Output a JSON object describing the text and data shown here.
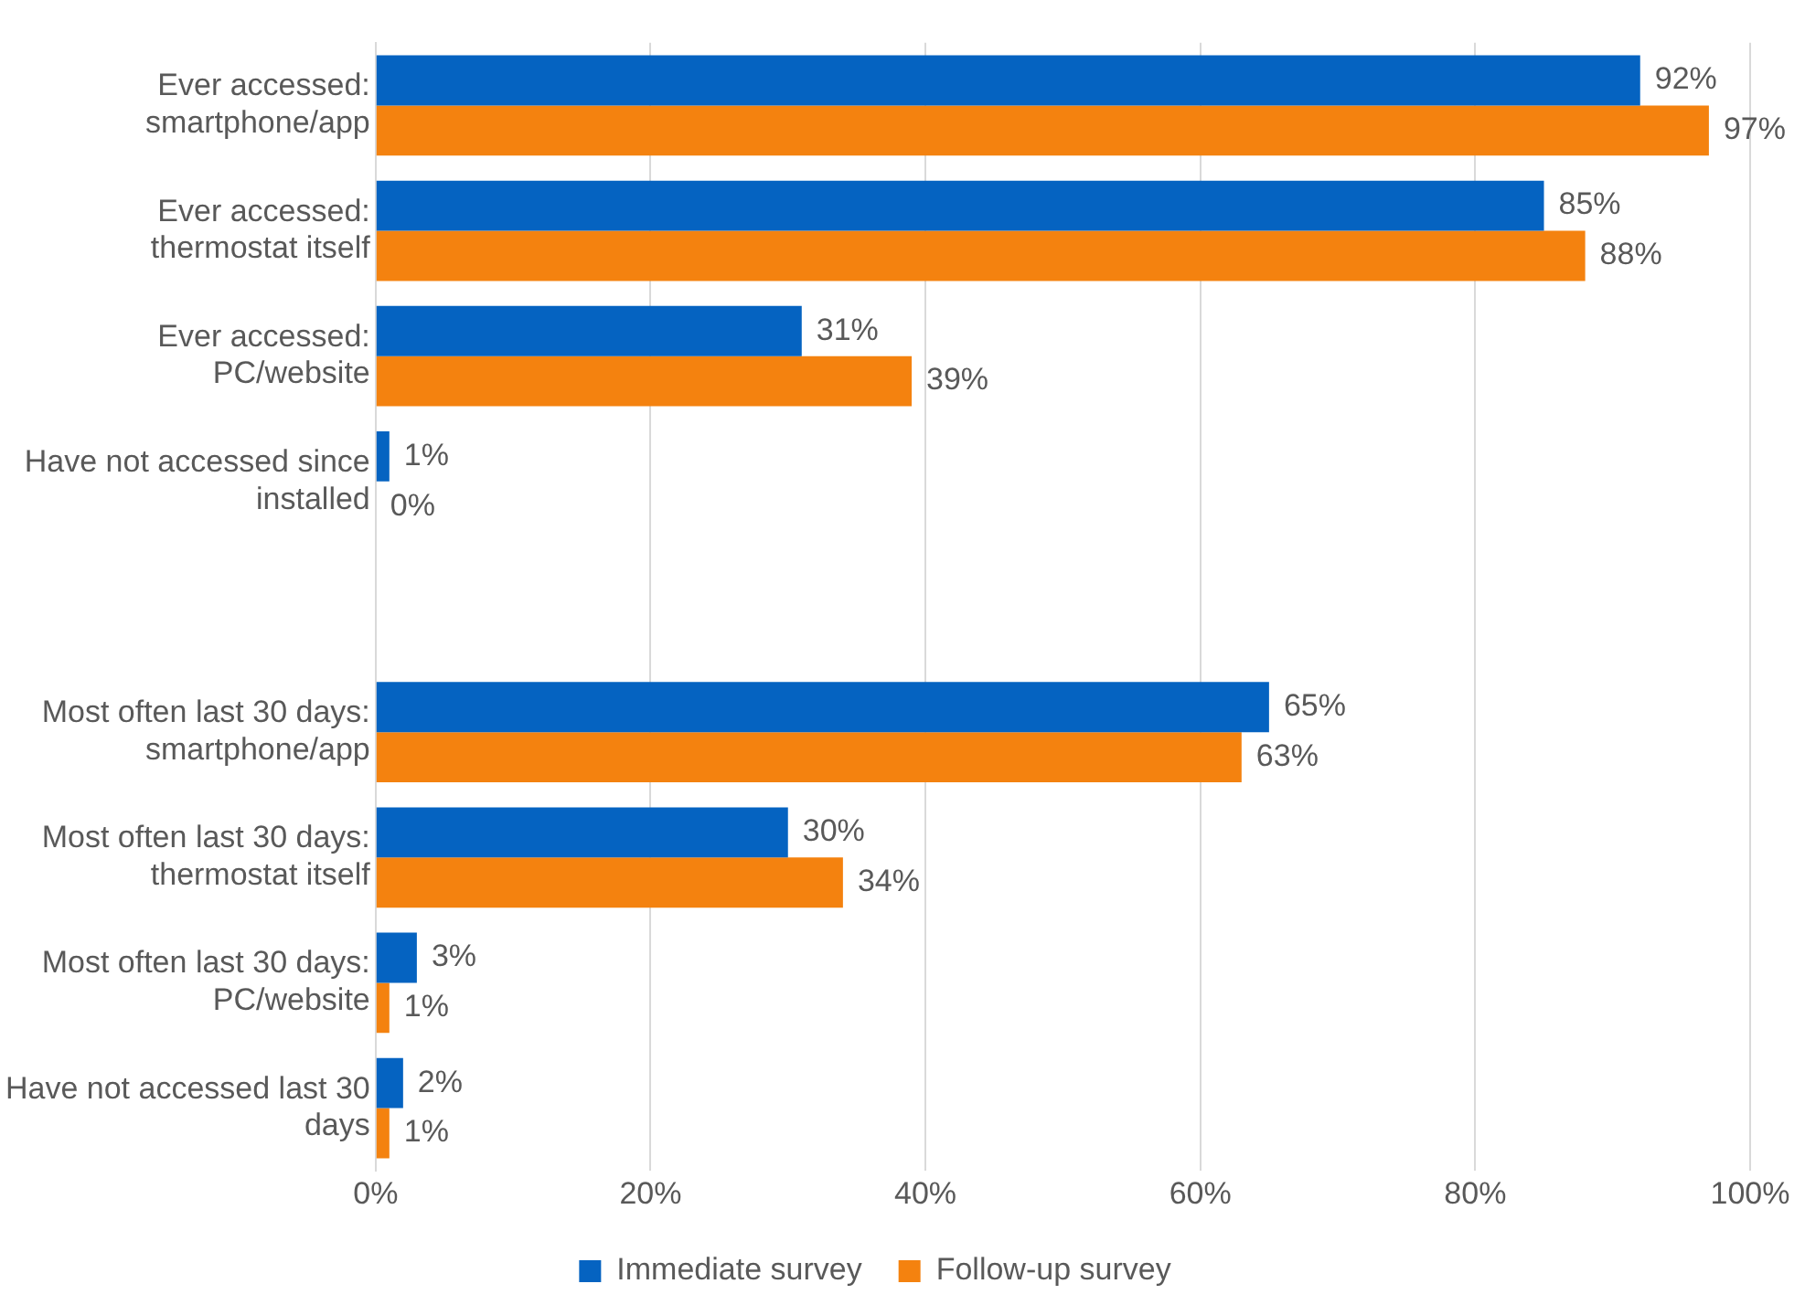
{
  "chart_data": {
    "type": "bar",
    "orientation": "horizontal",
    "categories": [
      "Ever accessed: smartphone/app",
      "Ever accessed: thermostat itself",
      "Ever accessed: PC/website",
      "Have not accessed since installed",
      null,
      "Most often last 30 days: smartphone/app",
      "Most often last 30 days: thermostat itself",
      "Most often last 30 days: PC/website",
      "Have not accessed last 30 days"
    ],
    "series": [
      {
        "name": "Immediate survey",
        "color": "#0563c1",
        "values": [
          92,
          85,
          31,
          1,
          null,
          65,
          30,
          3,
          2
        ],
        "value_labels": [
          "92%",
          "85%",
          "31%",
          "1%",
          null,
          "65%",
          "30%",
          "3%",
          "2%"
        ]
      },
      {
        "name": "Follow-up survey",
        "color": "#f4820f",
        "values": [
          97,
          88,
          39,
          0,
          null,
          63,
          34,
          1,
          1
        ],
        "value_labels": [
          "97%",
          "88%",
          "39%",
          "0%",
          null,
          "63%",
          "34%",
          "1%",
          "1%"
        ]
      }
    ],
    "xlim": [
      0,
      100
    ],
    "xticks": [
      {
        "value": 0,
        "label": "0%"
      },
      {
        "value": 20,
        "label": "20%"
      },
      {
        "value": 40,
        "label": "40%"
      },
      {
        "value": 60,
        "label": "60%"
      },
      {
        "value": 80,
        "label": "80%"
      },
      {
        "value": 100,
        "label": "100%"
      }
    ],
    "grid": "x",
    "legend": "bottom"
  }
}
